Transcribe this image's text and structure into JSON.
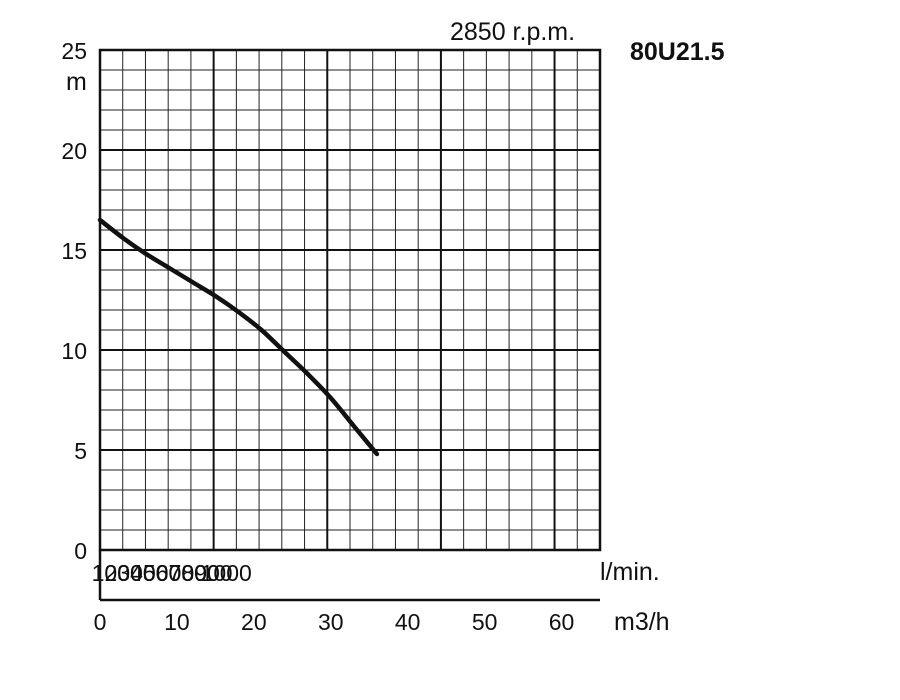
{
  "chart_data": {
    "type": "line",
    "title": "80U21.5",
    "subtitle": "2850 r.p.m.",
    "ylabel": "m",
    "ylim": [
      0,
      25
    ],
    "yticks": [
      0,
      5,
      10,
      15,
      20,
      25
    ],
    "xlabel": "m3/h",
    "xlim": [
      0,
      65
    ],
    "xticks": [
      0,
      10,
      20,
      30,
      40,
      50,
      60
    ],
    "x2label": "l/min.",
    "x2ticks": [
      100,
      200,
      300,
      400,
      500,
      600,
      700,
      800,
      900,
      1000
    ],
    "grid": true,
    "series": [
      {
        "x": [
          0,
          3,
          6,
          9,
          12,
          15,
          18,
          21,
          24,
          27,
          30,
          33,
          36
        ],
        "y": [
          16.5,
          15.6,
          14.8,
          14.1,
          13.4,
          12.7,
          11.9,
          11.0,
          9.9,
          8.8,
          7.6,
          6.2,
          4.8
        ]
      }
    ]
  }
}
